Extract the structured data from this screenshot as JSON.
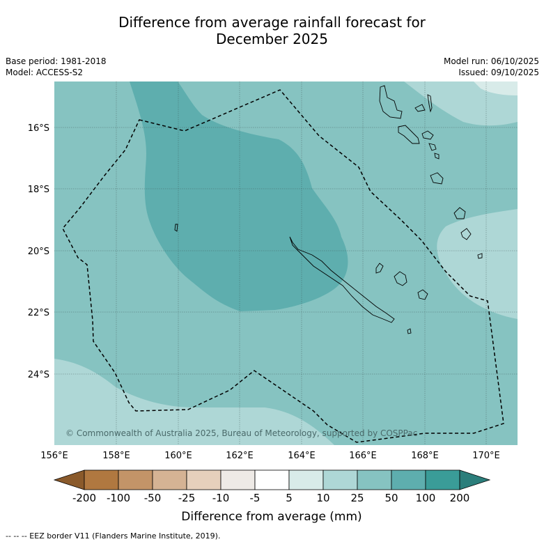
{
  "title_line1": "Difference from average rainfall forecast for",
  "title_line2": "December 2025",
  "base_period": "Base period: 1981-2018",
  "model": "Model: ACCESS-S2",
  "model_run": "Model run: 06/10/2025",
  "issued": "Issued: 09/10/2025",
  "copyright": "© Commonwealth of Australia 2025, Bureau of Meteorology, supported by COSPPac",
  "lat_labels": [
    "16°S",
    "18°S",
    "20°S",
    "22°S",
    "24°S"
  ],
  "lon_labels": [
    "156°E",
    "158°E",
    "160°E",
    "162°E",
    "164°E",
    "166°E",
    "168°E",
    "170°E"
  ],
  "colorbar": {
    "ticks": [
      "-200",
      "-100",
      "-50",
      "-25",
      "-10",
      "-5",
      "5",
      "10",
      "25",
      "50",
      "100",
      "200"
    ],
    "colors": [
      "#8a5a2b",
      "#b07840",
      "#c39468",
      "#d5b394",
      "#e6d0bc",
      "#eeeae6",
      "#ffffff",
      "#d8ebe9",
      "#aed7d6",
      "#86c3c1",
      "#5eaeae",
      "#3a9c98",
      "#2b7e7b"
    ],
    "label": "Difference from average (mm)"
  },
  "footer": "--  --  -- EEZ border V11 (Flanders Marine Institute, 2019)."
}
